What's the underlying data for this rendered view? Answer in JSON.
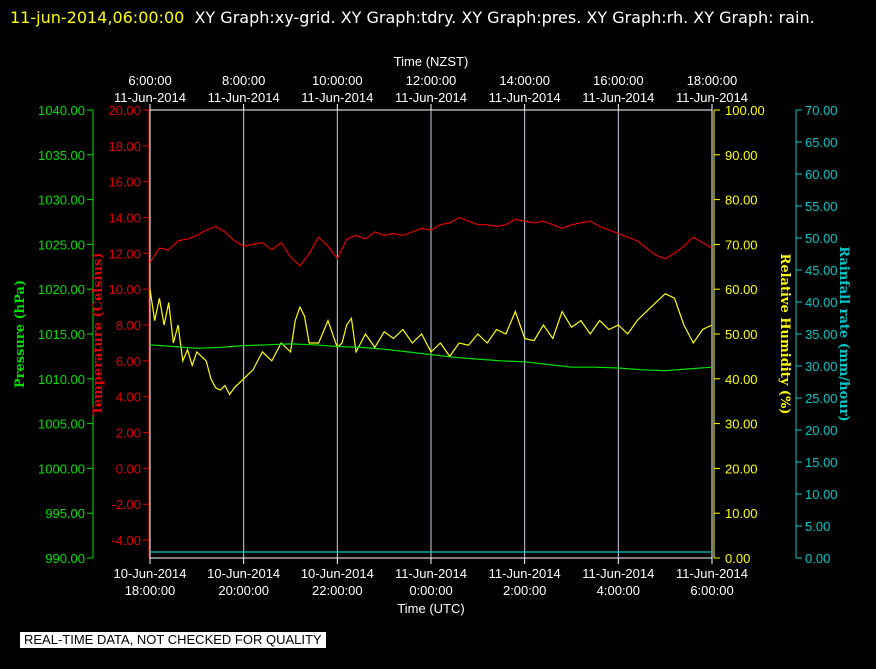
{
  "header": {
    "timestamp": "11-jun-2014,06:00:00",
    "graphs": "XY Graph:xy-grid.  XY Graph:tdry.  XY Graph:pres.  XY Graph:rh.  XY Graph: rain."
  },
  "notice": "REAL-TIME DATA, NOT CHECKED FOR QUALITY",
  "colors": {
    "background": "#000000",
    "grid": "#c8d2e6",
    "axis": "#ffffff",
    "pressure": "#00e000",
    "temperature": "#e00000",
    "humidity": "#ffff00",
    "rain": "#00c8c8"
  },
  "chart_data": {
    "type": "line",
    "top_axis": {
      "label": "Time (NZST)",
      "ticks": [
        {
          "time": "6:00:00",
          "date": "11-Jun-2014"
        },
        {
          "time": "8:00:00",
          "date": "11-Jun-2014"
        },
        {
          "time": "10:00:00",
          "date": "11-Jun-2014"
        },
        {
          "time": "12:00:00",
          "date": "11-Jun-2014"
        },
        {
          "time": "14:00:00",
          "date": "11-Jun-2014"
        },
        {
          "time": "16:00:00",
          "date": "11-Jun-2014"
        },
        {
          "time": "18:00:00",
          "date": "11-Jun-2014"
        }
      ]
    },
    "bottom_axis": {
      "label": "Time (UTC)",
      "ticks": [
        {
          "date": "10-Jun-2014",
          "time": "18:00:00"
        },
        {
          "date": "10-Jun-2014",
          "time": "20:00:00"
        },
        {
          "date": "10-Jun-2014",
          "time": "22:00:00"
        },
        {
          "date": "11-Jun-2014",
          "time": "0:00:00"
        },
        {
          "date": "11-Jun-2014",
          "time": "2:00:00"
        },
        {
          "date": "11-Jun-2014",
          "time": "4:00:00"
        },
        {
          "date": "11-Jun-2014",
          "time": "6:00:00"
        }
      ]
    },
    "x_hours_range": [
      0,
      12
    ],
    "grid": true,
    "axes": {
      "pressure": {
        "label": "Pressure (hPa)",
        "range": [
          990,
          1040
        ],
        "ticks": [
          "990.00",
          "995.00",
          "1000.00",
          "1005.00",
          "1010.00",
          "1015.00",
          "1020.00",
          "1025.00",
          "1030.00",
          "1035.00",
          "1040.00"
        ]
      },
      "temperature": {
        "label": "Temperature (Celsius)",
        "range": [
          -5,
          20
        ],
        "ticks": [
          "-4.00",
          "-2.00",
          "0.00",
          "2.00",
          "4.00",
          "6.00",
          "8.00",
          "10.00",
          "12.00",
          "14.00",
          "16.00",
          "18.00",
          "20.00"
        ]
      },
      "humidity": {
        "label": "Relative Humidity (%)",
        "range": [
          0,
          100
        ],
        "ticks": [
          "0.00",
          "10.00",
          "20.00",
          "30.00",
          "40.00",
          "50.00",
          "60.00",
          "70.00",
          "80.00",
          "90.00",
          "100.00"
        ]
      },
      "rain": {
        "label": "Rainfall rate (mm/hour)",
        "range": [
          0,
          70
        ],
        "ticks": [
          "0.00",
          "5.00",
          "10.00",
          "15.00",
          "20.00",
          "25.00",
          "30.00",
          "35.00",
          "40.00",
          "45.00",
          "50.00",
          "55.00",
          "60.00",
          "65.00",
          "70.00"
        ]
      }
    },
    "series": [
      {
        "key": "temperature",
        "points": [
          [
            0,
            11.5
          ],
          [
            0.2,
            12.3
          ],
          [
            0.4,
            12.2
          ],
          [
            0.6,
            12.7
          ],
          [
            0.8,
            12.8
          ],
          [
            1.0,
            13.0
          ],
          [
            1.2,
            13.3
          ],
          [
            1.4,
            13.5
          ],
          [
            1.6,
            13.2
          ],
          [
            1.8,
            12.7
          ],
          [
            2.0,
            12.4
          ],
          [
            2.2,
            12.5
          ],
          [
            2.4,
            12.6
          ],
          [
            2.6,
            12.2
          ],
          [
            2.8,
            12.6
          ],
          [
            3.0,
            11.8
          ],
          [
            3.2,
            11.3
          ],
          [
            3.4,
            12.0
          ],
          [
            3.6,
            12.9
          ],
          [
            3.8,
            12.4
          ],
          [
            4.0,
            11.7
          ],
          [
            4.2,
            12.8
          ],
          [
            4.4,
            13.0
          ],
          [
            4.6,
            12.8
          ],
          [
            4.8,
            13.2
          ],
          [
            5.0,
            13.0
          ],
          [
            5.2,
            13.1
          ],
          [
            5.4,
            13.0
          ],
          [
            5.6,
            13.2
          ],
          [
            5.8,
            13.4
          ],
          [
            6.0,
            13.3
          ],
          [
            6.2,
            13.6
          ],
          [
            6.4,
            13.7
          ],
          [
            6.6,
            14.0
          ],
          [
            6.8,
            13.8
          ],
          [
            7.0,
            13.6
          ],
          [
            7.2,
            13.6
          ],
          [
            7.4,
            13.5
          ],
          [
            7.6,
            13.6
          ],
          [
            7.8,
            13.9
          ],
          [
            8.0,
            13.8
          ],
          [
            8.2,
            13.7
          ],
          [
            8.4,
            13.8
          ],
          [
            8.6,
            13.6
          ],
          [
            8.8,
            13.4
          ],
          [
            9.0,
            13.6
          ],
          [
            9.2,
            13.7
          ],
          [
            9.4,
            13.8
          ],
          [
            9.6,
            13.5
          ],
          [
            9.8,
            13.3
          ],
          [
            10.0,
            13.1
          ],
          [
            10.2,
            12.9
          ],
          [
            10.4,
            12.7
          ],
          [
            10.6,
            12.3
          ],
          [
            10.8,
            11.9
          ],
          [
            11.0,
            11.7
          ],
          [
            11.2,
            12.0
          ],
          [
            11.4,
            12.4
          ],
          [
            11.6,
            12.9
          ],
          [
            11.8,
            12.6
          ],
          [
            12.0,
            12.3
          ]
        ]
      },
      {
        "key": "humidity",
        "points": [
          [
            0,
            60.0
          ],
          [
            0.1,
            53.0
          ],
          [
            0.2,
            58.0
          ],
          [
            0.3,
            52.0
          ],
          [
            0.4,
            57.0
          ],
          [
            0.5,
            48.0
          ],
          [
            0.6,
            52.0
          ],
          [
            0.7,
            44.0
          ],
          [
            0.8,
            46.5
          ],
          [
            0.9,
            43.0
          ],
          [
            1.0,
            46.0
          ],
          [
            1.2,
            44.0
          ],
          [
            1.3,
            40.0
          ],
          [
            1.4,
            38.0
          ],
          [
            1.5,
            37.5
          ],
          [
            1.6,
            38.5
          ],
          [
            1.7,
            36.5
          ],
          [
            1.8,
            38.0
          ],
          [
            2.0,
            40.0
          ],
          [
            2.2,
            42.0
          ],
          [
            2.4,
            46.0
          ],
          [
            2.6,
            44.0
          ],
          [
            2.8,
            48.0
          ],
          [
            3.0,
            46.0
          ],
          [
            3.1,
            53.0
          ],
          [
            3.2,
            56.0
          ],
          [
            3.3,
            54.0
          ],
          [
            3.4,
            48.0
          ],
          [
            3.6,
            48.0
          ],
          [
            3.8,
            53.0
          ],
          [
            3.9,
            50.0
          ],
          [
            4.0,
            47.0
          ],
          [
            4.1,
            48.0
          ],
          [
            4.2,
            52.0
          ],
          [
            4.3,
            53.5
          ],
          [
            4.4,
            46.0
          ],
          [
            4.6,
            50.0
          ],
          [
            4.8,
            47.0
          ],
          [
            5.0,
            50.5
          ],
          [
            5.2,
            49.0
          ],
          [
            5.4,
            51.0
          ],
          [
            5.6,
            48.0
          ],
          [
            5.8,
            50.0
          ],
          [
            6.0,
            46.0
          ],
          [
            6.2,
            48.0
          ],
          [
            6.4,
            45.0
          ],
          [
            6.6,
            48.0
          ],
          [
            6.8,
            47.5
          ],
          [
            7.0,
            50.0
          ],
          [
            7.2,
            48.0
          ],
          [
            7.4,
            51.0
          ],
          [
            7.6,
            50.0
          ],
          [
            7.8,
            55.0
          ],
          [
            7.9,
            52.0
          ],
          [
            8.0,
            49.0
          ],
          [
            8.2,
            48.5
          ],
          [
            8.4,
            52.0
          ],
          [
            8.6,
            49.0
          ],
          [
            8.8,
            55.0
          ],
          [
            9.0,
            51.5
          ],
          [
            9.2,
            53.0
          ],
          [
            9.4,
            50.0
          ],
          [
            9.6,
            53.0
          ],
          [
            9.8,
            51.0
          ],
          [
            10.0,
            52.0
          ],
          [
            10.2,
            50.0
          ],
          [
            10.4,
            53.0
          ],
          [
            10.6,
            55.0
          ],
          [
            10.8,
            57.0
          ],
          [
            11.0,
            59.0
          ],
          [
            11.2,
            58.0
          ],
          [
            11.4,
            52.0
          ],
          [
            11.5,
            50.0
          ],
          [
            11.6,
            48.0
          ],
          [
            11.8,
            51.0
          ],
          [
            12.0,
            52.0
          ]
        ]
      },
      {
        "key": "pressure",
        "points": [
          [
            0,
            1013.8
          ],
          [
            0.5,
            1013.6
          ],
          [
            1.0,
            1013.4
          ],
          [
            1.5,
            1013.5
          ],
          [
            2.0,
            1013.7
          ],
          [
            2.5,
            1013.8
          ],
          [
            3.0,
            1013.9
          ],
          [
            3.5,
            1013.8
          ],
          [
            4.0,
            1013.6
          ],
          [
            4.5,
            1013.5
          ],
          [
            5.0,
            1013.3
          ],
          [
            5.5,
            1013.0
          ],
          [
            6.0,
            1012.7
          ],
          [
            6.5,
            1012.4
          ],
          [
            7.0,
            1012.2
          ],
          [
            7.5,
            1012.0
          ],
          [
            8.0,
            1011.9
          ],
          [
            8.5,
            1011.6
          ],
          [
            9.0,
            1011.3
          ],
          [
            9.5,
            1011.3
          ],
          [
            10.0,
            1011.2
          ],
          [
            10.5,
            1011.0
          ],
          [
            11.0,
            1010.9
          ],
          [
            11.5,
            1011.1
          ],
          [
            12.0,
            1011.3
          ]
        ]
      },
      {
        "key": "rain",
        "points": [
          [
            0,
            0.0
          ],
          [
            12,
            0.0
          ]
        ]
      }
    ]
  }
}
